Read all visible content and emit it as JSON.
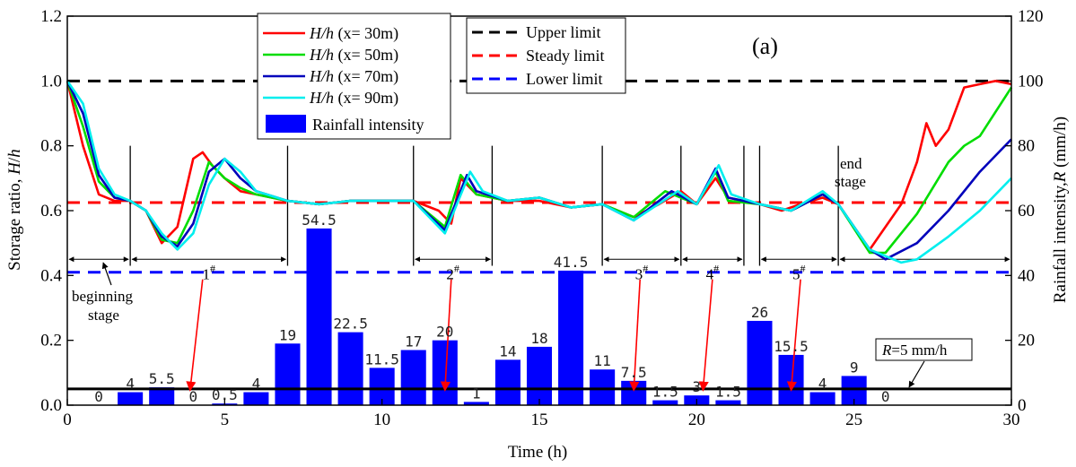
{
  "chart_data": {
    "type": "line",
    "panel_label": "(a)",
    "xlabel": "Time (h)",
    "ylabel_left": "Storage ratio, H/h",
    "ylabel_right": "Rainfall intensity,R (mm/h)",
    "xlim": [
      0,
      30
    ],
    "ylim_left": [
      0.0,
      1.2
    ],
    "ylim_right": [
      0,
      120
    ],
    "x_ticks": [
      0,
      5,
      10,
      15,
      20,
      25,
      30
    ],
    "y_left_ticks": [
      "0.0",
      "0.2",
      "0.4",
      "0.6",
      "0.8",
      "1.0",
      "1.2"
    ],
    "y_right_ticks": [
      "0",
      "20",
      "40",
      "60",
      "80",
      "100",
      "120"
    ],
    "rainfall": {
      "name": "Rainfall intensity",
      "color": "#0000ff",
      "x": [
        0,
        1,
        2,
        3,
        4,
        5,
        6,
        7,
        8,
        9,
        10,
        11,
        12,
        13,
        14,
        15,
        16,
        17,
        18,
        19,
        20,
        21,
        22,
        23,
        24,
        25
      ],
      "values": [
        0,
        4,
        5.5,
        0,
        0.5,
        4,
        19,
        54.5,
        22.5,
        11.5,
        17,
        20,
        1,
        14,
        18,
        41.5,
        11,
        7.5,
        1.5,
        3,
        1.5,
        26,
        15.5,
        4,
        9,
        0
      ],
      "labels": [
        "0",
        "4",
        "5.5",
        "0",
        "0.5",
        "4",
        "19",
        "54.5",
        "22.5",
        "11.5",
        "17",
        "20",
        "1",
        "14",
        "18",
        "41.5",
        "11",
        "7.5",
        "1.5",
        "3",
        "1.5",
        "26",
        "15.5",
        "4",
        "9",
        "0"
      ]
    },
    "series": [
      {
        "name_italic": "H/h",
        "name_suffix": " (x= 30m)",
        "color": "#ff0000",
        "x": [
          0,
          0.5,
          1,
          1.5,
          2,
          2.5,
          3,
          3.5,
          4,
          4.3,
          4.6,
          5,
          5.5,
          6,
          7,
          8,
          9,
          10,
          11,
          11.8,
          12.2,
          12.5,
          13,
          14,
          15,
          16,
          17,
          18,
          18.8,
          19.5,
          20,
          20.3,
          20.6,
          21,
          22,
          22.7,
          23.3,
          24,
          24.5,
          25.5,
          26,
          26.5,
          27,
          27.3,
          27.6,
          28,
          28.5,
          29,
          29.5,
          30
        ],
        "y": [
          1.0,
          0.8,
          0.65,
          0.63,
          0.63,
          0.6,
          0.5,
          0.55,
          0.76,
          0.78,
          0.74,
          0.7,
          0.66,
          0.65,
          0.63,
          0.62,
          0.63,
          0.63,
          0.63,
          0.6,
          0.56,
          0.7,
          0.65,
          0.63,
          0.63,
          0.61,
          0.62,
          0.58,
          0.62,
          0.66,
          0.62,
          0.66,
          0.7,
          0.64,
          0.62,
          0.6,
          0.62,
          0.64,
          0.62,
          0.48,
          0.55,
          0.62,
          0.75,
          0.87,
          0.8,
          0.85,
          0.98,
          0.99,
          1.0,
          0.99
        ]
      },
      {
        "name_italic": "H/h",
        "name_suffix": " (x= 50m)",
        "color": "#00dd00",
        "x": [
          0,
          0.5,
          1,
          1.5,
          2,
          2.5,
          3,
          3.5,
          4,
          4.5,
          5,
          5.5,
          6,
          7,
          8,
          9,
          10,
          11,
          12,
          12.5,
          13,
          14,
          15,
          16,
          17,
          18,
          19,
          20,
          20.6,
          21,
          22,
          23,
          24,
          24.5,
          25.5,
          26,
          27,
          28,
          28.5,
          29,
          30
        ],
        "y": [
          1.0,
          0.86,
          0.69,
          0.64,
          0.63,
          0.6,
          0.51,
          0.5,
          0.6,
          0.75,
          0.7,
          0.67,
          0.65,
          0.63,
          0.62,
          0.63,
          0.63,
          0.63,
          0.55,
          0.71,
          0.65,
          0.63,
          0.64,
          0.61,
          0.62,
          0.58,
          0.66,
          0.62,
          0.72,
          0.63,
          0.62,
          0.6,
          0.65,
          0.62,
          0.47,
          0.47,
          0.59,
          0.75,
          0.8,
          0.83,
          0.98
        ]
      },
      {
        "name_italic": "H/h",
        "name_suffix": " (x= 70m)",
        "color": "#0000bb",
        "x": [
          0,
          0.5,
          1,
          1.5,
          2,
          2.5,
          3,
          3.5,
          4,
          4.5,
          5,
          5.5,
          6,
          7,
          8,
          9,
          10,
          11,
          12,
          12.7,
          13,
          14,
          15,
          16,
          17,
          18,
          19.2,
          20,
          20.6,
          21,
          22,
          23,
          24,
          24.5,
          25.5,
          26,
          27,
          28,
          29,
          30
        ],
        "y": [
          1.0,
          0.9,
          0.71,
          0.64,
          0.63,
          0.6,
          0.52,
          0.49,
          0.56,
          0.72,
          0.76,
          0.7,
          0.66,
          0.63,
          0.62,
          0.63,
          0.63,
          0.63,
          0.54,
          0.71,
          0.66,
          0.63,
          0.64,
          0.61,
          0.62,
          0.57,
          0.66,
          0.62,
          0.73,
          0.64,
          0.62,
          0.6,
          0.65,
          0.62,
          0.48,
          0.45,
          0.5,
          0.6,
          0.72,
          0.82
        ]
      },
      {
        "name_italic": "H/h",
        "name_suffix": " (x= 90m)",
        "color": "#00eeee",
        "x": [
          0,
          0.5,
          1,
          1.5,
          2,
          2.5,
          3,
          3.5,
          4,
          4.5,
          5,
          5.5,
          6,
          7,
          8,
          9,
          10,
          11,
          12,
          12.8,
          13.2,
          14,
          15,
          16,
          17,
          18,
          19.4,
          20,
          20.7,
          21.1,
          22,
          23,
          24,
          24.5,
          25.5,
          26.5,
          27,
          28,
          29,
          30
        ],
        "y": [
          1.0,
          0.93,
          0.73,
          0.65,
          0.63,
          0.6,
          0.53,
          0.48,
          0.53,
          0.68,
          0.76,
          0.72,
          0.66,
          0.63,
          0.62,
          0.63,
          0.63,
          0.63,
          0.53,
          0.72,
          0.66,
          0.63,
          0.64,
          0.61,
          0.62,
          0.57,
          0.66,
          0.62,
          0.74,
          0.65,
          0.62,
          0.6,
          0.66,
          0.62,
          0.48,
          0.44,
          0.45,
          0.52,
          0.6,
          0.7
        ]
      }
    ],
    "limits": [
      {
        "name": "Upper limit",
        "value": 1.0,
        "color": "#000000"
      },
      {
        "name": "Steady limit",
        "value": 0.625,
        "color": "#ff0000"
      },
      {
        "name": "Lower limit",
        "value": 0.41,
        "color": "#0000ff"
      }
    ],
    "threshold_line": {
      "value_right": 5,
      "label_italic": "R",
      "label_suffix": "=5 mm/h"
    },
    "stage_boundaries": [
      2,
      7,
      11,
      13.5,
      17,
      19.5,
      21.5,
      22,
      24.5
    ],
    "stage_spans": [
      {
        "x0": 0,
        "x1": 2,
        "label": "",
        "sup": ""
      },
      {
        "x0": 2,
        "x1": 7,
        "label": "1",
        "sup": "#"
      },
      {
        "x0": 11,
        "x1": 13.5,
        "label": "2",
        "sup": "#"
      },
      {
        "x0": 17,
        "x1": 19.5,
        "label": "3",
        "sup": "#"
      },
      {
        "x0": 19.5,
        "x1": 21.5,
        "label": "4",
        "sup": "#"
      },
      {
        "x0": 22,
        "x1": 24.5,
        "label": "5",
        "sup": "#"
      },
      {
        "x0": 24.5,
        "x1": 30,
        "label": "",
        "sup": ""
      }
    ],
    "red_arrows": [
      {
        "x_start": 4.3,
        "x_end": 3.9
      },
      {
        "x_start": 12.2,
        "x_end": 12.0
      },
      {
        "x_start": 18.2,
        "x_end": 18.0
      },
      {
        "x_start": 20.5,
        "x_end": 20.2
      },
      {
        "x_start": 23.3,
        "x_end": 23.0
      }
    ],
    "annotations": {
      "beginning_line1": "beginning",
      "beginning_line2": "stage",
      "end_line1": "end",
      "end_line2": "stage"
    },
    "legend_placement": "top-center"
  }
}
